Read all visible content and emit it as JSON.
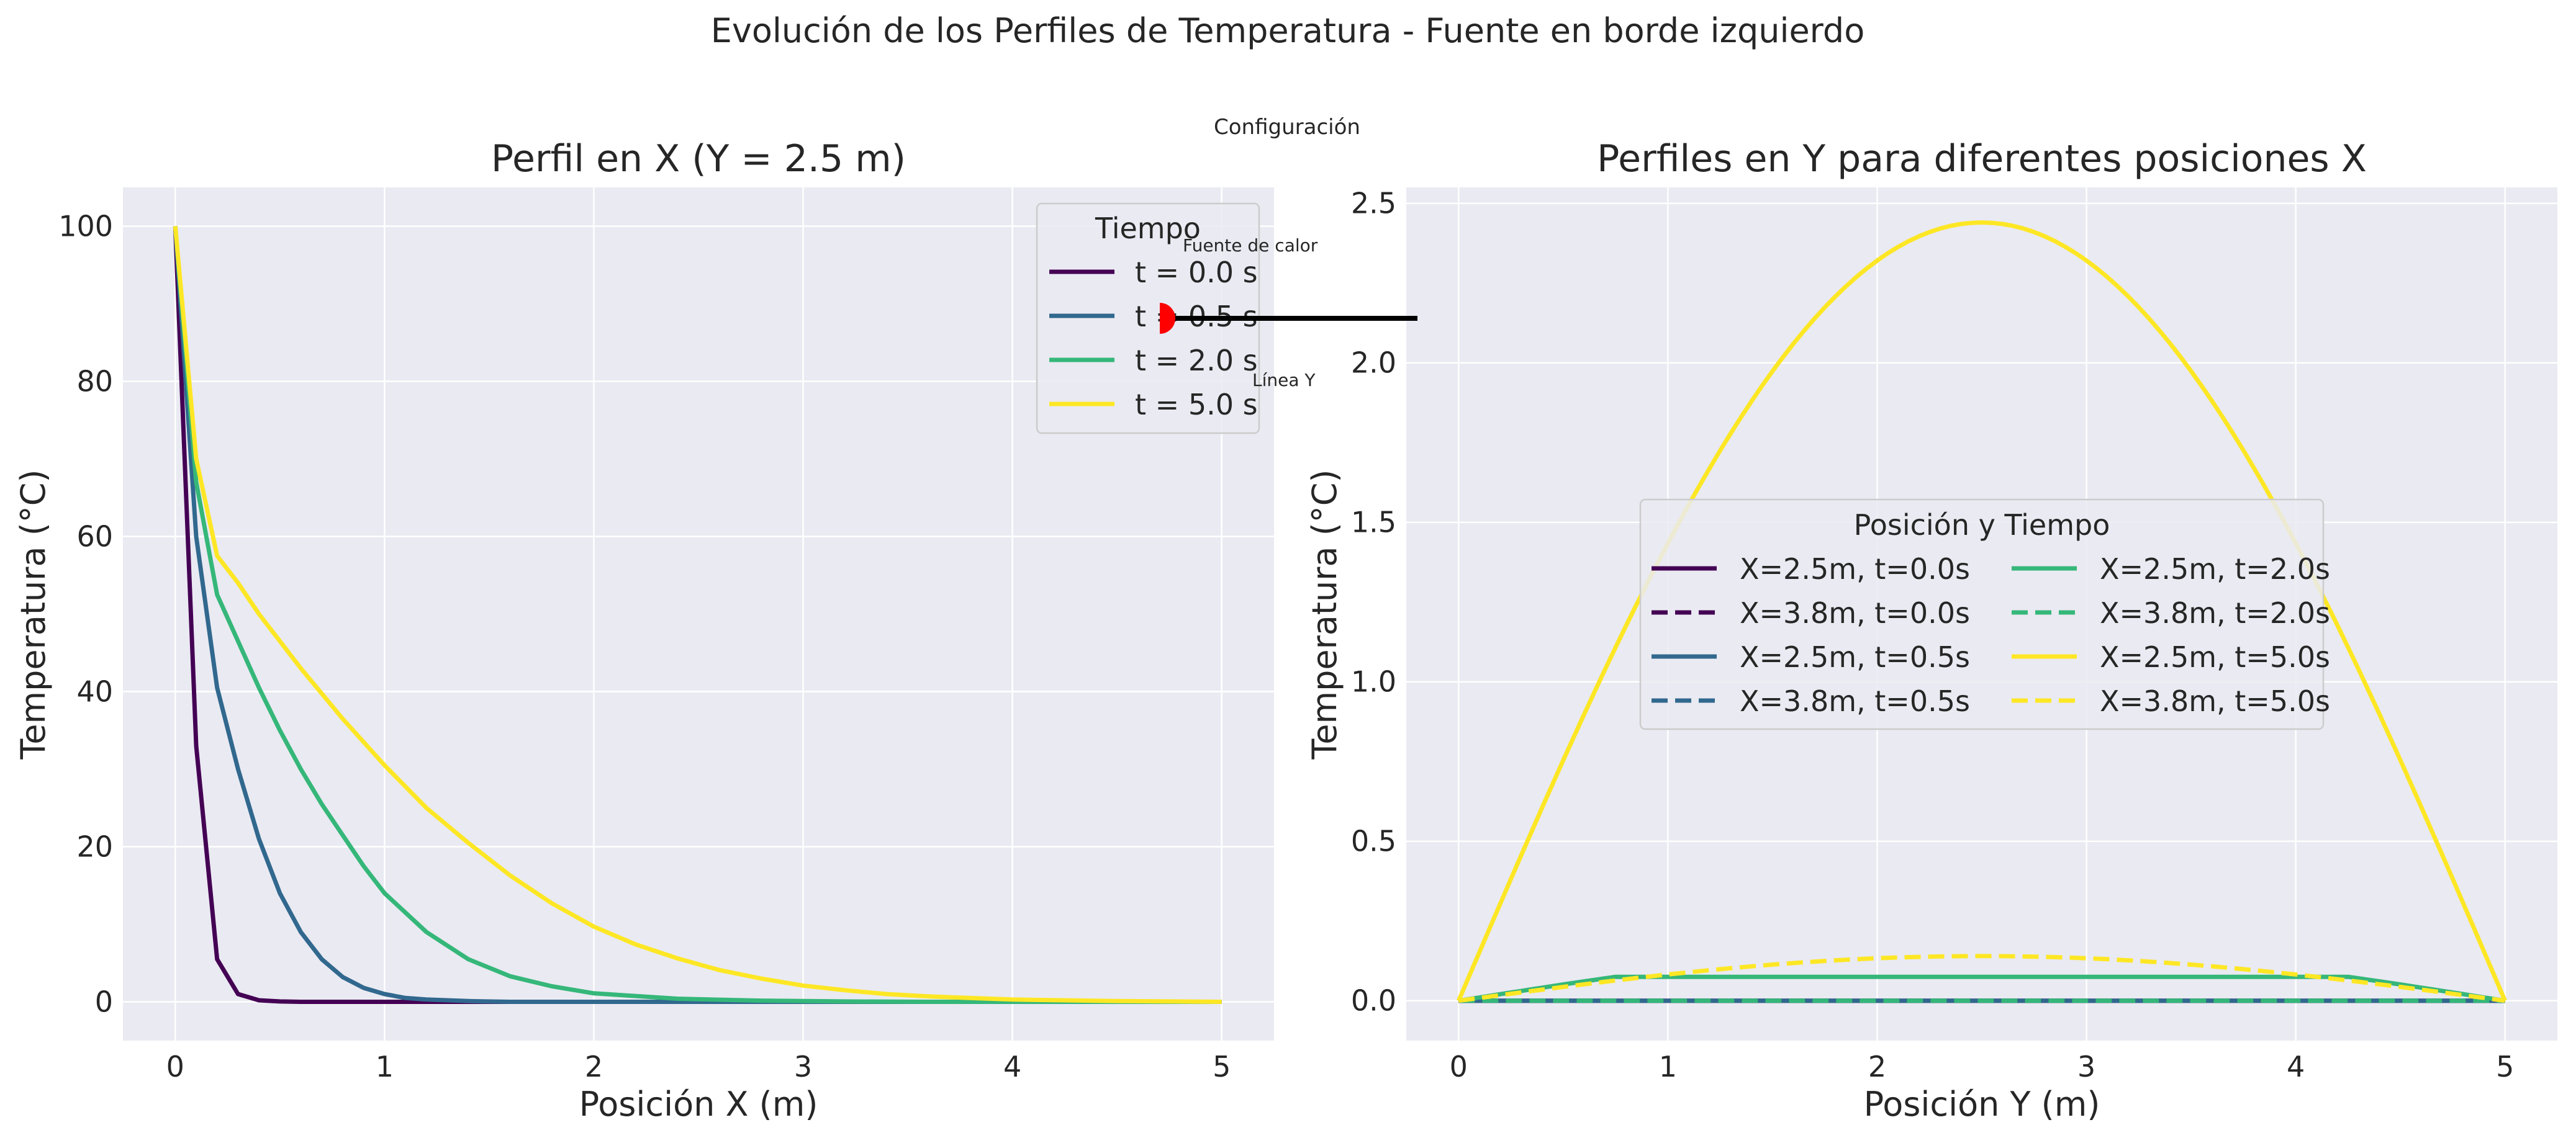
{
  "suptitle": "Evolución de los Perfiles de Temperatura - Fuente en borde izquierdo",
  "inset": {
    "title": "Configuración",
    "source_label": "Fuente de calor",
    "line_label": "Línea Y",
    "source_color": "#ff0000",
    "line_color": "#000000"
  },
  "colors": {
    "t0": "#440154",
    "t05": "#31688e",
    "t2": "#35b779",
    "t5": "#fde725",
    "axes_bg": "#eaeaf2",
    "grid": "#ffffff"
  },
  "chart_data": [
    {
      "type": "line",
      "title": "Perfil en X (Y = 2.5 m)",
      "xlabel": "Posición X (m)",
      "ylabel": "Temperatura (°C)",
      "xlim": [
        -0.25,
        5.25
      ],
      "ylim": [
        -5,
        105
      ],
      "xticks": [
        0,
        1,
        2,
        3,
        4,
        5
      ],
      "yticks": [
        0,
        20,
        40,
        60,
        80,
        100
      ],
      "grid": true,
      "legend": {
        "title": "Tiempo",
        "placement": "upper-right"
      },
      "series": [
        {
          "name": "t = 0.0 s",
          "color": "#440154",
          "x": [
            0,
            0.1,
            0.2,
            0.3,
            0.4,
            0.5,
            0.6,
            0.8,
            1.0,
            1.5,
            2.0,
            3.0,
            4.0,
            5.0
          ],
          "y": [
            100,
            33,
            5.5,
            1.0,
            0.2,
            0.05,
            0,
            0,
            0,
            0,
            0,
            0,
            0,
            0
          ]
        },
        {
          "name": "t = 0.5 s",
          "color": "#31688e",
          "x": [
            0,
            0.1,
            0.2,
            0.3,
            0.4,
            0.5,
            0.6,
            0.7,
            0.8,
            0.9,
            1.0,
            1.1,
            1.2,
            1.4,
            1.6,
            2.0,
            3.0,
            4.0,
            5.0
          ],
          "y": [
            100,
            60,
            40.5,
            30,
            21,
            14,
            9,
            5.5,
            3.2,
            1.8,
            1.0,
            0.5,
            0.3,
            0.1,
            0,
            0,
            0,
            0,
            0
          ]
        },
        {
          "name": "t = 2.0 s",
          "color": "#35b779",
          "x": [
            0,
            0.1,
            0.2,
            0.3,
            0.4,
            0.5,
            0.6,
            0.7,
            0.8,
            0.9,
            1.0,
            1.2,
            1.4,
            1.6,
            1.8,
            2.0,
            2.4,
            2.8,
            3.2,
            3.6,
            4.0,
            5.0
          ],
          "y": [
            100,
            67,
            52.5,
            46.5,
            40.5,
            35,
            30,
            25.5,
            21.5,
            17.5,
            14,
            9,
            5.5,
            3.3,
            2.0,
            1.1,
            0.4,
            0.15,
            0.05,
            0,
            0,
            0
          ]
        },
        {
          "name": "t = 5.0 s",
          "color": "#fde725",
          "x": [
            0,
            0.1,
            0.2,
            0.3,
            0.4,
            0.5,
            0.6,
            0.8,
            1.0,
            1.2,
            1.4,
            1.6,
            1.8,
            2.0,
            2.2,
            2.4,
            2.6,
            2.8,
            3.0,
            3.2,
            3.4,
            3.6,
            4.0,
            4.5,
            5.0
          ],
          "y": [
            100,
            70,
            57.5,
            54,
            50,
            46.5,
            43,
            36.5,
            30.5,
            25,
            20.5,
            16.3,
            12.7,
            9.7,
            7.4,
            5.6,
            4.1,
            3.0,
            2.1,
            1.5,
            1.0,
            0.7,
            0.3,
            0.1,
            0
          ]
        }
      ]
    },
    {
      "type": "line",
      "title": "Perfiles en Y para diferentes posiciones X",
      "xlabel": "Posición Y (m)",
      "ylabel": "Temperatura (°C)",
      "xlim": [
        -0.25,
        5.25
      ],
      "ylim": [
        -0.125,
        2.55
      ],
      "xticks": [
        0,
        1,
        2,
        3,
        4,
        5
      ],
      "yticks": [
        0.0,
        0.5,
        1.0,
        1.5,
        2.0,
        2.5
      ],
      "ytick_labels": [
        "0.0",
        "0.5",
        "1.0",
        "1.5",
        "2.0",
        "2.5"
      ],
      "grid": true,
      "legend": {
        "title": "Posición y Tiempo",
        "placement": "center",
        "columns": 2
      },
      "series": [
        {
          "name": "X=2.5m, t=0.0s",
          "color": "#440154",
          "dash": false,
          "shape": "flat",
          "peak": 0.0
        },
        {
          "name": "X=3.8m, t=0.0s",
          "color": "#440154",
          "dash": true,
          "shape": "flat",
          "peak": 0.0
        },
        {
          "name": "X=2.5m, t=0.5s",
          "color": "#31688e",
          "dash": false,
          "shape": "flat",
          "peak": 0.0
        },
        {
          "name": "X=3.8m, t=0.5s",
          "color": "#31688e",
          "dash": true,
          "shape": "flat",
          "peak": 0.0
        },
        {
          "name": "X=2.5m, t=2.0s",
          "color": "#35b779",
          "dash": false,
          "shape": "plateau",
          "peak": 0.075
        },
        {
          "name": "X=3.8m, t=2.0s",
          "color": "#35b779",
          "dash": true,
          "shape": "flat",
          "peak": 0.0
        },
        {
          "name": "X=2.5m, t=5.0s",
          "color": "#fde725",
          "dash": false,
          "shape": "sine",
          "peak": 2.44
        },
        {
          "name": "X=3.8m, t=5.0s",
          "color": "#fde725",
          "dash": true,
          "shape": "sine",
          "peak": 0.14
        }
      ]
    }
  ]
}
